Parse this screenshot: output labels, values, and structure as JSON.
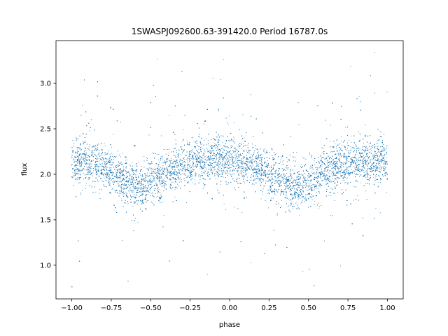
{
  "chart_data": {
    "type": "scatter",
    "title": "1SWASPJ092600.63-391420.0 Period 16787.0s",
    "xlabel": "phase",
    "ylabel": "flux",
    "xlim": [
      -1.1,
      1.1
    ],
    "ylim": [
      0.63,
      3.47
    ],
    "xticks": [
      -1.0,
      -0.75,
      -0.5,
      -0.25,
      0.0,
      0.25,
      0.5,
      0.75,
      1.0
    ],
    "xtick_labels": [
      "−1.00",
      "−0.75",
      "−0.50",
      "−0.25",
      "0.00",
      "0.25",
      "0.50",
      "0.75",
      "1.00"
    ],
    "yticks": [
      1.0,
      1.5,
      2.0,
      2.5,
      3.0
    ],
    "ytick_labels": [
      "1.0",
      "1.5",
      "2.0",
      "2.5",
      "3.0"
    ],
    "grid": false,
    "color": "#1f77b4",
    "series": [
      {
        "x": [
          -1.0,
          -0.9,
          -0.8,
          -0.7,
          -0.6,
          -0.56,
          -0.5,
          -0.4,
          -0.3,
          -0.2,
          -0.1,
          0.0,
          0.1,
          0.2,
          0.3,
          0.4,
          0.44,
          0.5,
          0.6,
          0.7,
          0.8,
          0.9,
          1.0
        ],
        "y": [
          2.15,
          2.14,
          2.08,
          1.98,
          1.88,
          1.85,
          1.9,
          2.02,
          2.1,
          2.15,
          2.16,
          2.17,
          2.12,
          2.05,
          1.96,
          1.86,
          1.84,
          1.9,
          2.02,
          2.1,
          2.14,
          2.15,
          2.15
        ]
      }
    ],
    "point_count_approx": 30000,
    "y_scatter_core": 0.12,
    "y_scatter_outlier_range": [
      0.75,
      3.35
    ]
  }
}
